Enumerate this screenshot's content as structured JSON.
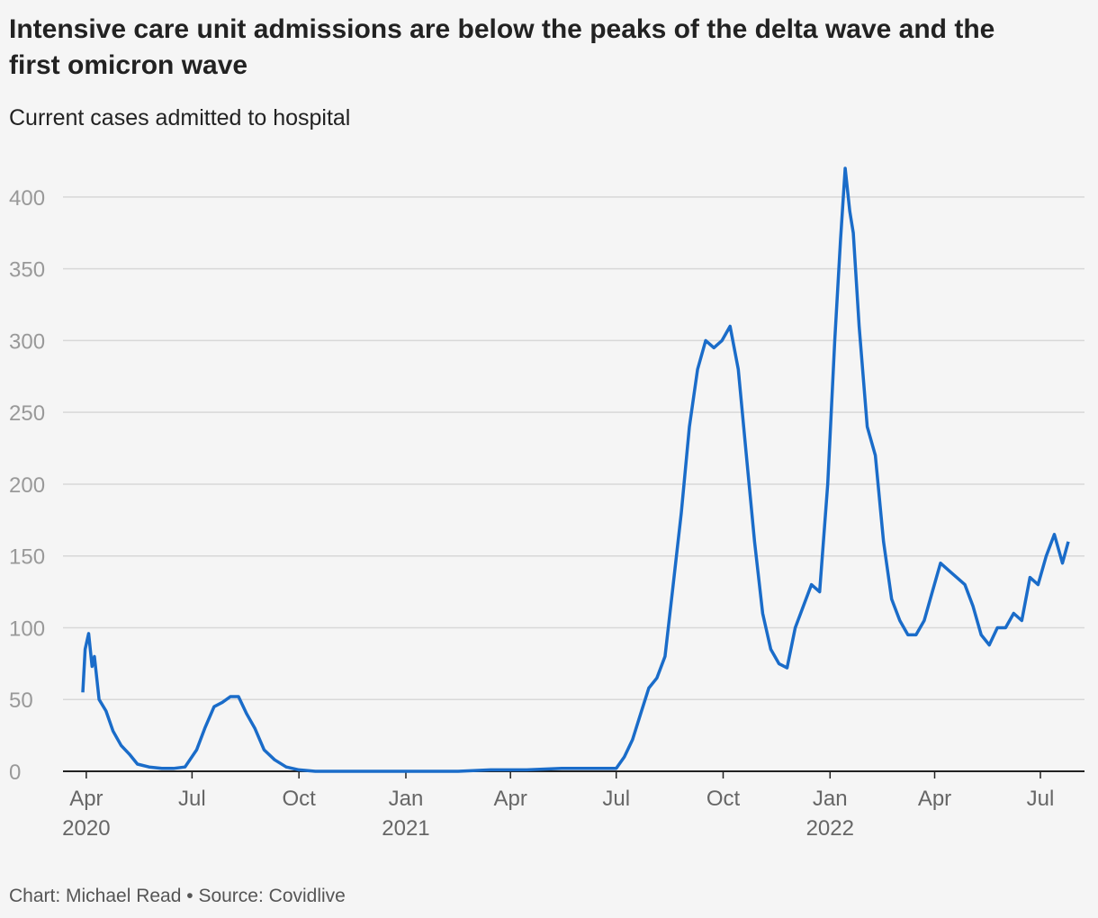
{
  "chart_data": {
    "type": "line",
    "title": "Intensive care unit admissions are below the peaks of the delta wave and the first omicron wave",
    "subtitle": "Current cases admitted to hospital",
    "footer": "Chart: Michael Read • Source: Covidlive",
    "color": "#1a6cc9",
    "x": [
      "2020-03-29",
      "2020-03-31",
      "2020-04-03",
      "2020-04-06",
      "2020-04-08",
      "2020-04-12",
      "2020-04-18",
      "2020-04-24",
      "2020-05-01",
      "2020-05-08",
      "2020-05-15",
      "2020-05-25",
      "2020-06-05",
      "2020-06-15",
      "2020-06-25",
      "2020-07-05",
      "2020-07-12",
      "2020-07-20",
      "2020-07-27",
      "2020-08-03",
      "2020-08-10",
      "2020-08-17",
      "2020-08-24",
      "2020-09-01",
      "2020-09-10",
      "2020-09-20",
      "2020-10-01",
      "2020-10-15",
      "2020-11-15",
      "2020-12-15",
      "2021-01-15",
      "2021-02-15",
      "2021-03-15",
      "2021-04-15",
      "2021-05-15",
      "2021-06-15",
      "2021-07-01",
      "2021-07-08",
      "2021-07-15",
      "2021-07-22",
      "2021-07-29",
      "2021-08-05",
      "2021-08-12",
      "2021-08-19",
      "2021-08-26",
      "2021-09-02",
      "2021-09-09",
      "2021-09-16",
      "2021-09-23",
      "2021-09-30",
      "2021-10-07",
      "2021-10-14",
      "2021-10-21",
      "2021-10-28",
      "2021-11-04",
      "2021-11-11",
      "2021-11-18",
      "2021-11-25",
      "2021-12-02",
      "2021-12-09",
      "2021-12-16",
      "2021-12-23",
      "2021-12-30",
      "2022-01-05",
      "2022-01-10",
      "2022-01-14",
      "2022-01-18",
      "2022-01-21",
      "2022-01-26",
      "2022-02-02",
      "2022-02-09",
      "2022-02-16",
      "2022-02-23",
      "2022-03-02",
      "2022-03-09",
      "2022-03-16",
      "2022-03-23",
      "2022-03-30",
      "2022-04-06",
      "2022-04-13",
      "2022-04-20",
      "2022-04-27",
      "2022-05-04",
      "2022-05-11",
      "2022-05-18",
      "2022-05-25",
      "2022-06-01",
      "2022-06-08",
      "2022-06-15",
      "2022-06-22",
      "2022-06-29",
      "2022-07-06",
      "2022-07-13",
      "2022-07-20",
      "2022-07-25"
    ],
    "values": [
      55,
      85,
      96,
      73,
      80,
      50,
      42,
      28,
      18,
      12,
      5,
      3,
      2,
      2,
      3,
      15,
      30,
      45,
      48,
      52,
      52,
      40,
      30,
      15,
      8,
      3,
      1,
      0,
      0,
      0,
      0,
      0,
      1,
      1,
      2,
      2,
      2,
      10,
      22,
      40,
      58,
      65,
      80,
      130,
      180,
      240,
      280,
      300,
      295,
      300,
      310,
      280,
      220,
      160,
      110,
      85,
      75,
      72,
      100,
      115,
      130,
      125,
      200,
      300,
      370,
      420,
      390,
      375,
      310,
      240,
      220,
      160,
      120,
      105,
      95,
      95,
      105,
      125,
      145,
      140,
      135,
      130,
      115,
      95,
      88,
      100,
      100,
      110,
      105,
      135,
      130,
      150,
      165,
      145,
      160
    ],
    "xlim": [
      "2020-03-29",
      "2022-07-25"
    ],
    "xticks": [
      {
        "value": "2020-04",
        "label": "Apr 2020"
      },
      {
        "value": "2020-07",
        "label": "Jul"
      },
      {
        "value": "2020-10",
        "label": "Oct"
      },
      {
        "value": "2021-01",
        "label": "Jan 2021"
      },
      {
        "value": "2021-04",
        "label": "Apr"
      },
      {
        "value": "2021-07",
        "label": "Jul"
      },
      {
        "value": "2021-10",
        "label": "Oct"
      },
      {
        "value": "2022-01",
        "label": "Jan 2022"
      },
      {
        "value": "2022-04",
        "label": "Apr"
      },
      {
        "value": "2022-07",
        "label": "Jul"
      }
    ],
    "ylim": [
      0,
      425
    ],
    "yticks": [
      0,
      50,
      100,
      150,
      200,
      250,
      300,
      350,
      400
    ],
    "grid": true
  }
}
